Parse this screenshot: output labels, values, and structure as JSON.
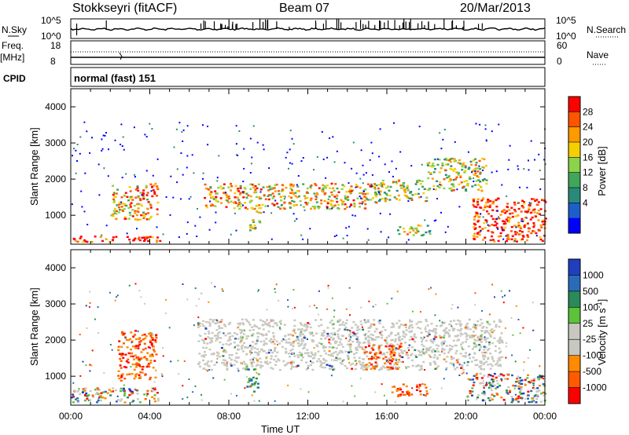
{
  "header": {
    "station": "Stokkseyri (fitACF)",
    "beam": "Beam 07",
    "date": "20/Mar/2013"
  },
  "top_panels": {
    "nsky_label": "N.Sky",
    "nsky_ticks": [
      "10^5",
      "10^0"
    ],
    "nsearch_label": "N.Search",
    "nsearch_ticks": [
      "10^5",
      "10^0"
    ],
    "freq_label": "Freq.",
    "freq_unit": "[MHz]",
    "freq_ticks": [
      "18",
      "8"
    ],
    "nave_label": "Nave",
    "nave_ticks": [
      "60",
      "0"
    ],
    "cpid_label": "CPID",
    "cpid_value": "normal (fast) 151"
  },
  "chart_data": [
    {
      "type": "heatmap",
      "name": "power",
      "xlabel": "",
      "ylabel": "Slant Range [km]",
      "xlim": [
        0,
        24
      ],
      "ylim": [
        200,
        4500
      ],
      "yticks": [
        "1000",
        "2000",
        "3000",
        "4000"
      ],
      "colorbar": {
        "label": "Power [dB]",
        "ticks": [
          "28",
          "24",
          "20",
          "16",
          "12",
          "8",
          "4"
        ],
        "colors": [
          "#ff0000",
          "#ff5500",
          "#ff9900",
          "#f5d000",
          "#8bd34a",
          "#3fa65a",
          "#2a8a7a",
          "#1c5fc8",
          "#0000ff"
        ]
      },
      "echo_regions": [
        {
          "t0": 0.0,
          "t1": 4.5,
          "r0": 280,
          "r1": 450,
          "level": 0.95
        },
        {
          "t0": 2.0,
          "t1": 4.4,
          "r0": 900,
          "r1": 1900,
          "level": 0.7
        },
        {
          "t0": 6.7,
          "t1": 15.5,
          "r0": 1200,
          "r1": 1900,
          "level": 0.65
        },
        {
          "t0": 9.0,
          "t1": 9.6,
          "r0": 600,
          "r1": 1300,
          "level": 0.5
        },
        {
          "t0": 15.3,
          "t1": 18.0,
          "r0": 1400,
          "r1": 2000,
          "level": 0.55
        },
        {
          "t0": 18.0,
          "t1": 21.0,
          "r0": 1700,
          "r1": 2600,
          "level": 0.55
        },
        {
          "t0": 16.5,
          "t1": 18.2,
          "r0": 450,
          "r1": 750,
          "level": 0.5
        },
        {
          "t0": 20.3,
          "t1": 24.0,
          "r0": 300,
          "r1": 1500,
          "level": 0.9
        }
      ]
    },
    {
      "type": "heatmap",
      "name": "velocity",
      "xlabel": "Time UT",
      "ylabel": "Slant Range [km]",
      "xlim": [
        0,
        24
      ],
      "ylim": [
        200,
        4500
      ],
      "xticks": [
        "00:00",
        "04:00",
        "08:00",
        "12:00",
        "16:00",
        "20:00",
        "00:00"
      ],
      "yticks": [
        "1000",
        "2000",
        "3000",
        "4000"
      ],
      "colorbar": {
        "label": "Velocity [m s",
        "label_sup": "-1",
        "label_end": "]",
        "ticks": [
          "1000",
          "500",
          "100",
          "25",
          "-25",
          "-100",
          "-500",
          "-1000"
        ],
        "colors": [
          "#1f3fbf",
          "#2a6bb8",
          "#2a8a5a",
          "#5bc23a",
          "#c8c8c0",
          "#c8c8c0",
          "#ff8a00",
          "#ff5a00",
          "#ff0000"
        ]
      },
      "echo_regions": [
        {
          "t0": 0.0,
          "t1": 4.4,
          "r0": 300,
          "r1": 700,
          "kind": "mixed"
        },
        {
          "t0": 2.3,
          "t1": 4.3,
          "r0": 900,
          "r1": 2300,
          "kind": "away"
        },
        {
          "t0": 6.4,
          "t1": 21.8,
          "r0": 1200,
          "r1": 2600,
          "kind": "ground"
        },
        {
          "t0": 8.8,
          "t1": 9.5,
          "r0": 600,
          "r1": 1300,
          "kind": "toward"
        },
        {
          "t0": 14.8,
          "t1": 16.7,
          "r0": 1200,
          "r1": 1900,
          "kind": "away"
        },
        {
          "t0": 16.2,
          "t1": 18.0,
          "r0": 450,
          "r1": 800,
          "kind": "away"
        },
        {
          "t0": 20.0,
          "t1": 24.0,
          "r0": 300,
          "r1": 1100,
          "kind": "mixed"
        }
      ]
    }
  ]
}
